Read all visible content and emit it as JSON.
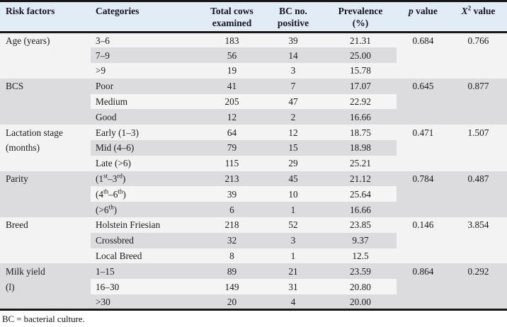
{
  "colors": {
    "header_bg": "#e2ecf6",
    "row_light": "#f3f3f3",
    "row_gray": "#dcdcde",
    "band_light": "#f5f5f5",
    "border": "#161616"
  },
  "table": {
    "columns": [
      {
        "lines": [
          "Risk factors"
        ]
      },
      {
        "lines": [
          "Categories"
        ]
      },
      {
        "lines": [
          "Total cows",
          "examined"
        ]
      },
      {
        "lines": [
          "BC no.",
          "positive"
        ]
      },
      {
        "lines": [
          "Prevalence",
          "(%)"
        ]
      },
      {
        "lines": [
          "*p* value"
        ]
      },
      {
        "lines": [
          "*X*^2^ value"
        ]
      }
    ],
    "groups": [
      {
        "shade": "light",
        "rows": [
          {
            "factor": "Age (years)",
            "category": "3–6",
            "total": "183",
            "positive": "39",
            "prevalence": "21.31",
            "p": "0.684",
            "chi": "0.766"
          },
          {
            "factor": "",
            "category": "7–9",
            "total": "56",
            "positive": "14",
            "prevalence": "25.00",
            "p": "",
            "chi": "",
            "band": true
          },
          {
            "factor": "",
            "category": ">9",
            "total": "19",
            "positive": "3",
            "prevalence": "15.78",
            "p": "",
            "chi": ""
          }
        ]
      },
      {
        "shade": "gray",
        "rows": [
          {
            "factor": "BCS",
            "category": "Poor",
            "total": "41",
            "positive": "7",
            "prevalence": "17.07",
            "p": "0.645",
            "chi": "0.877"
          },
          {
            "factor": "",
            "category": "Medium",
            "total": "205",
            "positive": "47",
            "prevalence": "22.92",
            "p": "",
            "chi": "",
            "band": true
          },
          {
            "factor": "",
            "category": "Good",
            "total": "12",
            "positive": "2",
            "prevalence": "16.66",
            "p": "",
            "chi": ""
          }
        ]
      },
      {
        "shade": "light",
        "rows": [
          {
            "factor": "Lactation stage",
            "category": "Early (1–3)",
            "total": "64",
            "positive": "12",
            "prevalence": "18.75",
            "p": "0.471",
            "chi": "1.507"
          },
          {
            "factor": "(months)",
            "category": "Mid (4–6)",
            "total": "79",
            "positive": "15",
            "prevalence": "18.98",
            "p": "",
            "chi": "",
            "band": true
          },
          {
            "factor": "",
            "category": "Late (>6)",
            "total": "115",
            "positive": "29",
            "prevalence": "25.21",
            "p": "",
            "chi": ""
          }
        ]
      },
      {
        "shade": "gray",
        "rows": [
          {
            "factor": "Parity",
            "category": "(1^st^–3^rd^)",
            "total": "213",
            "positive": "45",
            "prevalence": "21.12",
            "p": "0.784",
            "chi": "0.487"
          },
          {
            "factor": "",
            "category": "(4^th^–6^th^)",
            "total": "39",
            "positive": "10",
            "prevalence": "25.64",
            "p": "",
            "chi": "",
            "band": true
          },
          {
            "factor": "",
            "category": "(>6^th^)",
            "total": "6",
            "positive": "1",
            "prevalence": "16.66",
            "p": "",
            "chi": ""
          }
        ]
      },
      {
        "shade": "light",
        "rows": [
          {
            "factor": "Breed",
            "category": "Holstein Friesian",
            "total": "218",
            "positive": "52",
            "prevalence": "23.85",
            "p": "0.146",
            "chi": "3.854"
          },
          {
            "factor": "",
            "category": "Crossbred",
            "total": "32",
            "positive": "3",
            "prevalence": "9.37",
            "p": "",
            "chi": "",
            "band": true
          },
          {
            "factor": "",
            "category": "Local Breed",
            "total": "8",
            "positive": "1",
            "prevalence": "12.5",
            "p": "",
            "chi": ""
          }
        ]
      },
      {
        "shade": "gray",
        "rows": [
          {
            "factor": "Milk yield",
            "category": "1–15",
            "total": "89",
            "positive": "21",
            "prevalence": "23.59",
            "p": "0.864",
            "chi": "0.292"
          },
          {
            "factor": "(l)",
            "category": "16–30",
            "total": "149",
            "positive": "31",
            "prevalence": "20.80",
            "p": "",
            "chi": "",
            "band": true
          },
          {
            "factor": "",
            "category": ">30",
            "total": "20",
            "positive": "4",
            "prevalence": "20.00",
            "p": "",
            "chi": ""
          }
        ]
      }
    ],
    "footnote": "BC = bacterial culture."
  }
}
